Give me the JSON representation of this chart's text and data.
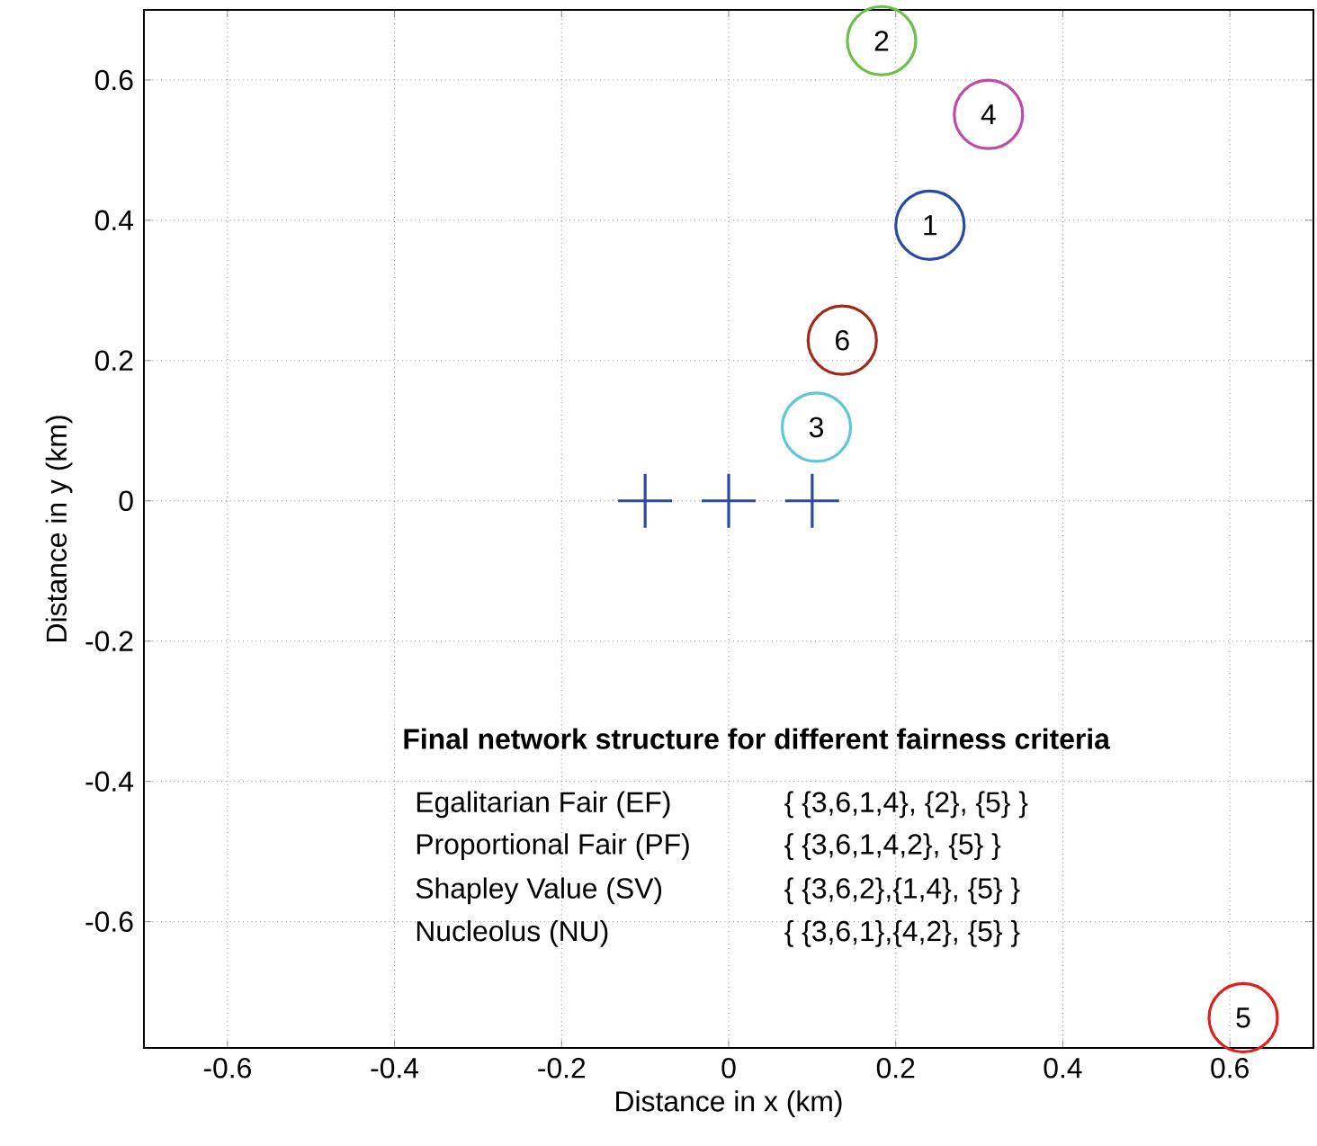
{
  "chart_data": {
    "type": "scatter",
    "xlabel": "Distance in x (km)",
    "ylabel": "Distance in y (km)",
    "xlim": [
      -0.7,
      0.7
    ],
    "ylim": [
      -0.78,
      0.7
    ],
    "xticks": [
      -0.6,
      -0.4,
      -0.2,
      0,
      0.2,
      0.4,
      0.6
    ],
    "yticks": [
      -0.6,
      -0.4,
      -0.2,
      0,
      0.2,
      0.4,
      0.6
    ],
    "grid": true,
    "series": [
      {
        "x": [
          -0.1,
          0,
          0.1
        ],
        "values": [
          0,
          0,
          0
        ],
        "color": "#2b4ba3",
        "marker": "cross"
      },
      {
        "x": [
          0.241
        ],
        "values": [
          0.393
        ],
        "color": "#2a4aa8",
        "marker": "circle"
      },
      {
        "x": [
          0.183
        ],
        "values": [
          0.656
        ],
        "color": "#6cc04a",
        "marker": "circle"
      },
      {
        "x": [
          0.105
        ],
        "values": [
          0.105
        ],
        "color": "#5bc8dc",
        "marker": "circle"
      },
      {
        "x": [
          0.311
        ],
        "values": [
          0.551
        ],
        "color": "#c04aa8",
        "marker": "circle"
      },
      {
        "x": [
          0.616
        ],
        "values": [
          -0.737
        ],
        "color": "#e02020",
        "marker": "circle"
      },
      {
        "x": [
          0.136
        ],
        "values": [
          0.229
        ],
        "color": "#a02a1a",
        "marker": "circle"
      }
    ],
    "annotations": [
      {
        "text": "1",
        "x": 0.241,
        "y": 0.393
      },
      {
        "text": "2",
        "x": 0.183,
        "y": 0.656
      },
      {
        "text": "3",
        "x": 0.105,
        "y": 0.105
      },
      {
        "text": "4",
        "x": 0.311,
        "y": 0.551
      },
      {
        "text": "5",
        "x": 0.616,
        "y": -0.737
      },
      {
        "text": "6",
        "x": 0.136,
        "y": 0.229
      },
      "Final network structure for different fairness criteria",
      "Egalitarian Fair (EF)",
      "{ {3,6,1,4}, {2}, {5} }",
      "Proportional Fair (PF)",
      "{ {3,6,1,4,2}, {5} }",
      "Shapley Value (SV)",
      "{ {3,6,2},{1,4}, {5} }",
      "Nucleolus (NU)",
      "{ {3,6,1},{4,2}, {5} }"
    ]
  }
}
